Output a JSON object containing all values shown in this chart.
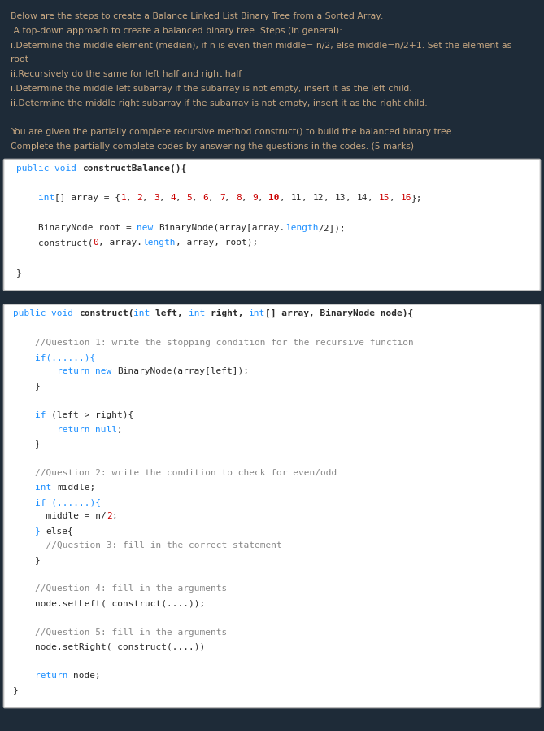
{
  "bg_color": "#1e2b38",
  "box_bg": "#ffffff",
  "box_border": "#cccccc",
  "top_text_color": "#c8a882",
  "figsize": [
    6.69,
    8.98
  ],
  "dpi": 100,
  "top_lines": [
    "Below are the steps to create a Balance Linked List Binary Tree from a Sorted Array:",
    " A top-down approach to create a balanced binary tree. Steps (in general):",
    "i.Determine the middle element (median), if n is even then middle= n/2, else middle=n/2+1. Set the element as",
    "root",
    "ii.Recursively do the same for left half and right half",
    "i.Determine the middle left subarray if the subarray is not empty, insert it as the left child.",
    "ii.Determine the middle right subarray if the subarray is not empty, insert it as the right child.",
    "",
    "You are given the partially complete recursive method construct() to build the balanced binary tree.",
    "Complete the partially complete codes by answering the questions in the codes. (5 marks)"
  ],
  "box1_lines": [
    [
      [
        "public ",
        "#1e90ff",
        false
      ],
      [
        "void ",
        "#1e90ff",
        false
      ],
      [
        "constructBalance(){",
        "#2b2b2b",
        true
      ]
    ],
    [],
    [
      [
        "    int",
        "#1e90ff",
        false
      ],
      [
        "[] array = {",
        "#2b2b2b",
        false
      ],
      [
        "1",
        "#cc0000",
        false
      ],
      [
        ", ",
        "#2b2b2b",
        false
      ],
      [
        "2",
        "#cc0000",
        false
      ],
      [
        ", ",
        "#2b2b2b",
        false
      ],
      [
        "3",
        "#cc0000",
        false
      ],
      [
        ", ",
        "#2b2b2b",
        false
      ],
      [
        "4",
        "#cc0000",
        false
      ],
      [
        ", ",
        "#2b2b2b",
        false
      ],
      [
        "5",
        "#cc0000",
        false
      ],
      [
        ", ",
        "#2b2b2b",
        false
      ],
      [
        "6",
        "#cc0000",
        false
      ],
      [
        ", ",
        "#2b2b2b",
        false
      ],
      [
        "7",
        "#cc0000",
        false
      ],
      [
        ", ",
        "#2b2b2b",
        false
      ],
      [
        "8",
        "#cc0000",
        false
      ],
      [
        ", ",
        "#2b2b2b",
        false
      ],
      [
        "9",
        "#cc0000",
        false
      ],
      [
        ", ",
        "#2b2b2b",
        false
      ],
      [
        "10",
        "#cc0000",
        true
      ],
      [
        ", ",
        "#2b2b2b",
        false
      ],
      [
        "11",
        "#2b2b2b",
        false
      ],
      [
        ", ",
        "#2b2b2b",
        false
      ],
      [
        "12",
        "#2b2b2b",
        false
      ],
      [
        ", ",
        "#2b2b2b",
        false
      ],
      [
        "13",
        "#2b2b2b",
        false
      ],
      [
        ", ",
        "#2b2b2b",
        false
      ],
      [
        "14",
        "#2b2b2b",
        false
      ],
      [
        ", ",
        "#2b2b2b",
        false
      ],
      [
        "15",
        "#cc0000",
        false
      ],
      [
        ", ",
        "#2b2b2b",
        false
      ],
      [
        "16",
        "#cc0000",
        false
      ],
      [
        "};",
        "#2b2b2b",
        false
      ]
    ],
    [],
    [
      [
        "    BinaryNode root ",
        "#2b2b2b",
        false
      ],
      [
        "= ",
        "#2b2b2b",
        false
      ],
      [
        "new ",
        "#1e90ff",
        false
      ],
      [
        "BinaryNode(array[array.",
        "#2b2b2b",
        false
      ],
      [
        "length",
        "#1e90ff",
        false
      ],
      [
        "/2]);",
        "#2b2b2b",
        false
      ]
    ],
    [
      [
        "    construct(",
        "#2b2b2b",
        false
      ],
      [
        "0",
        "#cc0000",
        false
      ],
      [
        ", array.",
        "#2b2b2b",
        false
      ],
      [
        "length",
        "#1e90ff",
        false
      ],
      [
        ", array, root);",
        "#2b2b2b",
        false
      ]
    ],
    [],
    [
      [
        "}",
        "#2b2b2b",
        false
      ]
    ]
  ],
  "box2_lines": [
    [
      [
        "public ",
        "#1e90ff",
        false
      ],
      [
        "void ",
        "#1e90ff",
        false
      ],
      [
        "construct(",
        "#2b2b2b",
        true
      ],
      [
        "int ",
        "#1e90ff",
        false
      ],
      [
        "left, ",
        "#2b2b2b",
        true
      ],
      [
        "int ",
        "#1e90ff",
        false
      ],
      [
        "right, ",
        "#2b2b2b",
        true
      ],
      [
        "int",
        "#1e90ff",
        false
      ],
      [
        "[] array, BinaryNode node){",
        "#2b2b2b",
        true
      ]
    ],
    [],
    [
      [
        "    //Question 1: write the stopping condition for the recursive function",
        "#888888",
        false
      ]
    ],
    [
      [
        "    if(......){",
        "#1e90ff",
        false
      ]
    ],
    [
      [
        "        return ",
        "#1e90ff",
        false
      ],
      [
        "new ",
        "#1e90ff",
        false
      ],
      [
        "BinaryNode(array[left]);",
        "#2b2b2b",
        false
      ]
    ],
    [
      [
        "    }",
        "#2b2b2b",
        false
      ]
    ],
    [],
    [
      [
        "    if ",
        "#1e90ff",
        false
      ],
      [
        "(left > right){",
        "#2b2b2b",
        false
      ]
    ],
    [
      [
        "        return ",
        "#1e90ff",
        false
      ],
      [
        "null",
        "#1e90ff",
        false
      ],
      [
        ";",
        "#2b2b2b",
        false
      ]
    ],
    [
      [
        "    }",
        "#2b2b2b",
        false
      ]
    ],
    [],
    [
      [
        "    //Question 2: write the condition to check for even/odd",
        "#888888",
        false
      ]
    ],
    [
      [
        "    int ",
        "#1e90ff",
        false
      ],
      [
        "middle;",
        "#2b2b2b",
        false
      ]
    ],
    [
      [
        "    if (......){",
        "#1e90ff",
        false
      ]
    ],
    [
      [
        "      middle = n/",
        "#2b2b2b",
        false
      ],
      [
        "2",
        "#cc0000",
        false
      ],
      [
        ";",
        "#2b2b2b",
        false
      ]
    ],
    [
      [
        "    } ",
        "#1e90ff",
        false
      ],
      [
        "else{",
        "#2b2b2b",
        false
      ]
    ],
    [
      [
        "      //Question 3: fill in the correct statement",
        "#888888",
        false
      ]
    ],
    [
      [
        "    }",
        "#2b2b2b",
        false
      ]
    ],
    [],
    [
      [
        "    //Question 4: fill in the arguments",
        "#888888",
        false
      ]
    ],
    [
      [
        "    node.setLeft( construct(....));",
        "#2b2b2b",
        false
      ]
    ],
    [],
    [
      [
        "    //Question 5: fill in the arguments",
        "#888888",
        false
      ]
    ],
    [
      [
        "    node.setRight( construct(....))",
        "#2b2b2b",
        false
      ]
    ],
    [],
    [
      [
        "    return ",
        "#1e90ff",
        false
      ],
      [
        "node;",
        "#2b2b2b",
        false
      ]
    ],
    [
      [
        "}",
        "#2b2b2b",
        false
      ]
    ]
  ]
}
